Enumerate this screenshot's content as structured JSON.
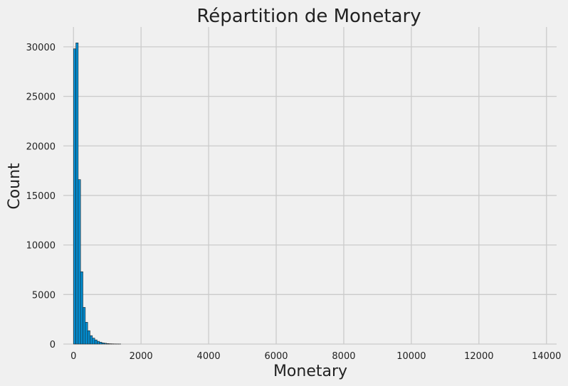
{
  "chart_data": {
    "type": "bar",
    "subtype": "histogram",
    "title": "Répartition de Monetary",
    "xlabel": "Monetary",
    "ylabel": "Count",
    "xlim": [
      -300,
      14300
    ],
    "ylim": [
      0,
      32000
    ],
    "xticks": [
      0,
      2000,
      4000,
      6000,
      8000,
      10000,
      12000,
      14000
    ],
    "yticks": [
      0,
      5000,
      10000,
      15000,
      20000,
      25000,
      30000
    ],
    "grid": true,
    "bar_color": "#008fd5",
    "edge_color": "#222222",
    "background": "#f0f0f0",
    "grid_color": "#cbcbcb",
    "bin_width": 70,
    "bin_start": 0,
    "counts": [
      29800,
      30400,
      16600,
      7300,
      3700,
      2200,
      1350,
      850,
      600,
      420,
      280,
      190,
      120,
      80,
      50,
      30,
      20,
      12,
      8,
      5
    ]
  }
}
